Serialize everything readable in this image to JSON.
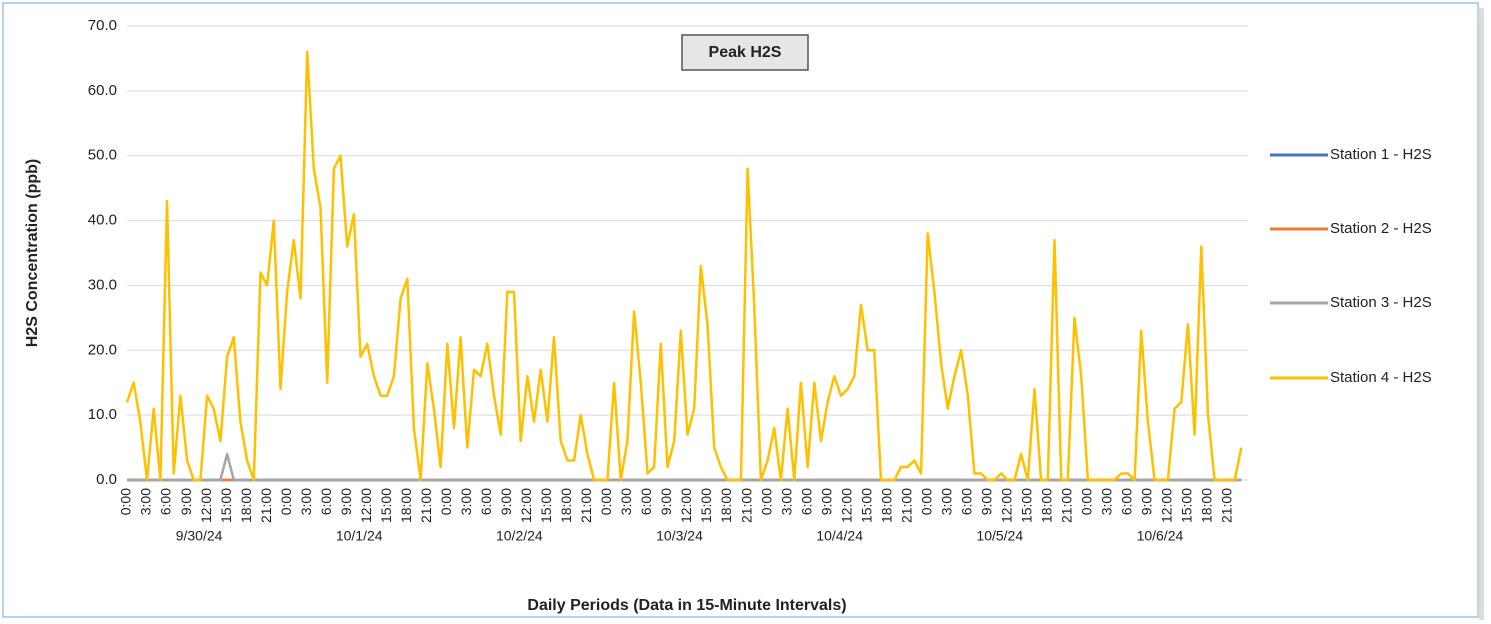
{
  "chart_data": {
    "type": "line",
    "title": "Peak H2S",
    "ylabel": "H2S Concentration (ppb)",
    "xlabel": "Daily Periods (Data in 15-Minute Intervals)",
    "ylim": [
      0,
      70
    ],
    "yticks": [
      {
        "value": 0,
        "label": "0.0"
      },
      {
        "value": 10,
        "label": "10.0"
      },
      {
        "value": 20,
        "label": "20.0"
      },
      {
        "value": 30,
        "label": "30.0"
      },
      {
        "value": 40,
        "label": "40.0"
      },
      {
        "value": 50,
        "label": "50.0"
      },
      {
        "value": 60,
        "label": "60.0"
      },
      {
        "value": 70,
        "label": "70.0"
      }
    ],
    "grid": true,
    "legend": "right",
    "day_labels": [
      "9/30/24",
      "10/1/24",
      "10/2/24",
      "10/3/24",
      "10/4/24",
      "10/5/24",
      "10/6/24"
    ],
    "categories": [
      "0:00",
      null,
      null,
      "3:00",
      null,
      null,
      "6:00",
      null,
      null,
      "9:00",
      null,
      null,
      "12:00",
      null,
      null,
      "15:00",
      null,
      null,
      "18:00",
      null,
      null,
      "21:00",
      null,
      null,
      "0:00",
      null,
      null,
      "3:00",
      null,
      null,
      "6:00",
      null,
      null,
      "9:00",
      null,
      null,
      "12:00",
      null,
      null,
      "15:00",
      null,
      null,
      "18:00",
      null,
      null,
      "21:00",
      null,
      null,
      "0:00",
      null,
      null,
      "3:00",
      null,
      null,
      "6:00",
      null,
      null,
      "9:00",
      null,
      null,
      "12:00",
      null,
      null,
      "15:00",
      null,
      null,
      "18:00",
      null,
      null,
      "21:00",
      null,
      null,
      "0:00",
      null,
      null,
      "3:00",
      null,
      null,
      "6:00",
      null,
      null,
      "9:00",
      null,
      null,
      "12:00",
      null,
      null,
      "15:00",
      null,
      null,
      "18:00",
      null,
      null,
      "21:00",
      null,
      null,
      "0:00",
      null,
      null,
      "3:00",
      null,
      null,
      "6:00",
      null,
      null,
      "9:00",
      null,
      null,
      "12:00",
      null,
      null,
      "15:00",
      null,
      null,
      "18:00",
      null,
      null,
      "21:00",
      null,
      null,
      "0:00",
      null,
      null,
      "3:00",
      null,
      null,
      "6:00",
      null,
      null,
      "9:00",
      null,
      null,
      "12:00",
      null,
      null,
      "15:00",
      null,
      null,
      "18:00",
      null,
      null,
      "21:00",
      null,
      null,
      "0:00",
      null,
      null,
      "3:00",
      null,
      null,
      "6:00",
      null,
      null,
      "9:00",
      null,
      null,
      "12:00",
      null,
      null,
      "15:00",
      null,
      null,
      "18:00",
      null,
      null,
      "21:00",
      null,
      null
    ],
    "series": [
      {
        "name": "Station 1 - H2S",
        "color": "#4472c4",
        "values": [
          0,
          0,
          0,
          0,
          0,
          0,
          0,
          0,
          0,
          0,
          0,
          0,
          0,
          0,
          0,
          0,
          0,
          0,
          0,
          0,
          0,
          0,
          0,
          0,
          0,
          0,
          0,
          0,
          0,
          0,
          0,
          0,
          0,
          0,
          0,
          0,
          0,
          0,
          0,
          0,
          0,
          0,
          0,
          0,
          0,
          0,
          0,
          0,
          0,
          0,
          0,
          0,
          0,
          0,
          0,
          0,
          0,
          0,
          0,
          0,
          0,
          0,
          0,
          0,
          0,
          0,
          0,
          0,
          0,
          0,
          0,
          0,
          0,
          0,
          0,
          0,
          0,
          0,
          0,
          0,
          0,
          0,
          0,
          0,
          0,
          0,
          0,
          0,
          0,
          0,
          0,
          0,
          0,
          0,
          0,
          0,
          0,
          0,
          0,
          0,
          0,
          0,
          0,
          0,
          0,
          0,
          0,
          0,
          0,
          0,
          0,
          0,
          0,
          0,
          0,
          0,
          0,
          0,
          0,
          0,
          0,
          0,
          0,
          0,
          0,
          0,
          0,
          0,
          0,
          0,
          0,
          0,
          0,
          0,
          0,
          0,
          0,
          0,
          0,
          0,
          0,
          0,
          0,
          0,
          0,
          0,
          0,
          0,
          0,
          0,
          0,
          0,
          0,
          0,
          0,
          0,
          0,
          0,
          0,
          0,
          0,
          0,
          0,
          0,
          0,
          0,
          0,
          0
        ]
      },
      {
        "name": "Station 2 - H2S",
        "color": "#ed7d31",
        "values": [
          0,
          0,
          0,
          0,
          0,
          0,
          0,
          0,
          0,
          0,
          0,
          0,
          0,
          0,
          0,
          0,
          0,
          0,
          0,
          0,
          0,
          0,
          0,
          0,
          0,
          0,
          0,
          0,
          0,
          0,
          0,
          0,
          0,
          0,
          0,
          0,
          0,
          0,
          0,
          0,
          0,
          0,
          0,
          0,
          0,
          0,
          0,
          0,
          0,
          0,
          0,
          0,
          0,
          0,
          0,
          0,
          0,
          0,
          0,
          0,
          0,
          0,
          0,
          0,
          0,
          0,
          0,
          0,
          0,
          0,
          0,
          0,
          0,
          0,
          0,
          0,
          0,
          0,
          0,
          0,
          0,
          0,
          0,
          0,
          0,
          0,
          0,
          0,
          0,
          0,
          0,
          0,
          0,
          0,
          0,
          0,
          0,
          0,
          0,
          0,
          0,
          0,
          0,
          0,
          0,
          0,
          0,
          0,
          0,
          0,
          0,
          0,
          0,
          0,
          0,
          0,
          0,
          0,
          0,
          0,
          0,
          0,
          0,
          0,
          0,
          0,
          0,
          0,
          0,
          0,
          0,
          0,
          0,
          0,
          0,
          0,
          0,
          0,
          0,
          0,
          0,
          0,
          0,
          0,
          0,
          0,
          0,
          0,
          0,
          0,
          0,
          0,
          0,
          0,
          0,
          0,
          0,
          0,
          0,
          0,
          0,
          0,
          0,
          0,
          0,
          0,
          0,
          0
        ]
      },
      {
        "name": "Station 3 - H2S",
        "color": "#a5a5a5",
        "values": [
          0,
          0,
          0,
          0,
          0,
          0,
          0,
          0,
          0,
          0,
          0,
          0,
          0,
          0,
          0,
          4,
          0,
          0,
          0,
          0,
          0,
          0,
          0,
          0,
          0,
          0,
          0,
          0,
          0,
          0,
          0,
          0,
          0,
          0,
          0,
          0,
          0,
          0,
          0,
          0,
          0,
          0,
          0,
          0,
          0,
          0,
          0,
          0,
          0,
          0,
          0,
          0,
          0,
          0,
          0,
          0,
          0,
          0,
          0,
          0,
          0,
          0,
          0,
          0,
          0,
          0,
          0,
          0,
          0,
          0,
          0,
          0,
          0,
          0,
          0,
          0,
          0,
          0,
          0,
          0,
          0,
          0,
          0,
          0,
          0,
          0,
          0,
          0,
          0,
          0,
          0,
          0,
          0,
          0,
          0,
          0,
          0,
          0,
          0,
          0,
          0,
          0,
          0,
          0,
          0,
          0,
          0,
          0,
          0,
          0,
          0,
          0,
          0,
          0,
          0,
          0,
          0,
          0,
          0,
          0,
          0,
          0,
          0,
          0,
          0,
          0,
          0,
          0,
          0,
          0,
          0,
          0,
          0,
          0,
          0,
          0,
          0,
          0,
          0,
          0,
          0,
          0,
          0,
          0,
          0,
          0,
          0,
          0,
          0,
          0,
          0,
          0,
          0,
          0,
          0,
          0,
          0,
          0,
          0,
          0,
          0,
          0,
          0,
          0,
          0,
          0,
          0,
          0
        ]
      },
      {
        "name": "Station 4 - H2S",
        "color": "#ffc000",
        "values": [
          12,
          15,
          9,
          0,
          11,
          0,
          43,
          1,
          13,
          3,
          0,
          0,
          13,
          11,
          6,
          19,
          22,
          9,
          3,
          0,
          32,
          30,
          40,
          14,
          29,
          37,
          28,
          66,
          48,
          42,
          15,
          48,
          50,
          36,
          41,
          19,
          21,
          16,
          13,
          13,
          16,
          28,
          31,
          8,
          0,
          18,
          11,
          2,
          21,
          8,
          22,
          5,
          17,
          16,
          21,
          13,
          7,
          29,
          29,
          6,
          16,
          9,
          17,
          9,
          22,
          6,
          3,
          3,
          10,
          4,
          0,
          0,
          0,
          15,
          0,
          6,
          26,
          15,
          1,
          2,
          21,
          2,
          6,
          23,
          7,
          11,
          33,
          24,
          5,
          2,
          0,
          0,
          0,
          48,
          27,
          0,
          3,
          8,
          0,
          11,
          0,
          15,
          2,
          15,
          6,
          12,
          16,
          13,
          14,
          16,
          27,
          20,
          20,
          0,
          0,
          0,
          2,
          2,
          3,
          1,
          38,
          29,
          18,
          11,
          16,
          20,
          13,
          1,
          1,
          0,
          0,
          1,
          0,
          0,
          4,
          0,
          14,
          0,
          0,
          37,
          0,
          0,
          25,
          16,
          0,
          0,
          0,
          0,
          0,
          1,
          1,
          0,
          23,
          9,
          0,
          0,
          0,
          11,
          12,
          24,
          7,
          36,
          10,
          0,
          0,
          0,
          0,
          5
        ]
      }
    ]
  }
}
